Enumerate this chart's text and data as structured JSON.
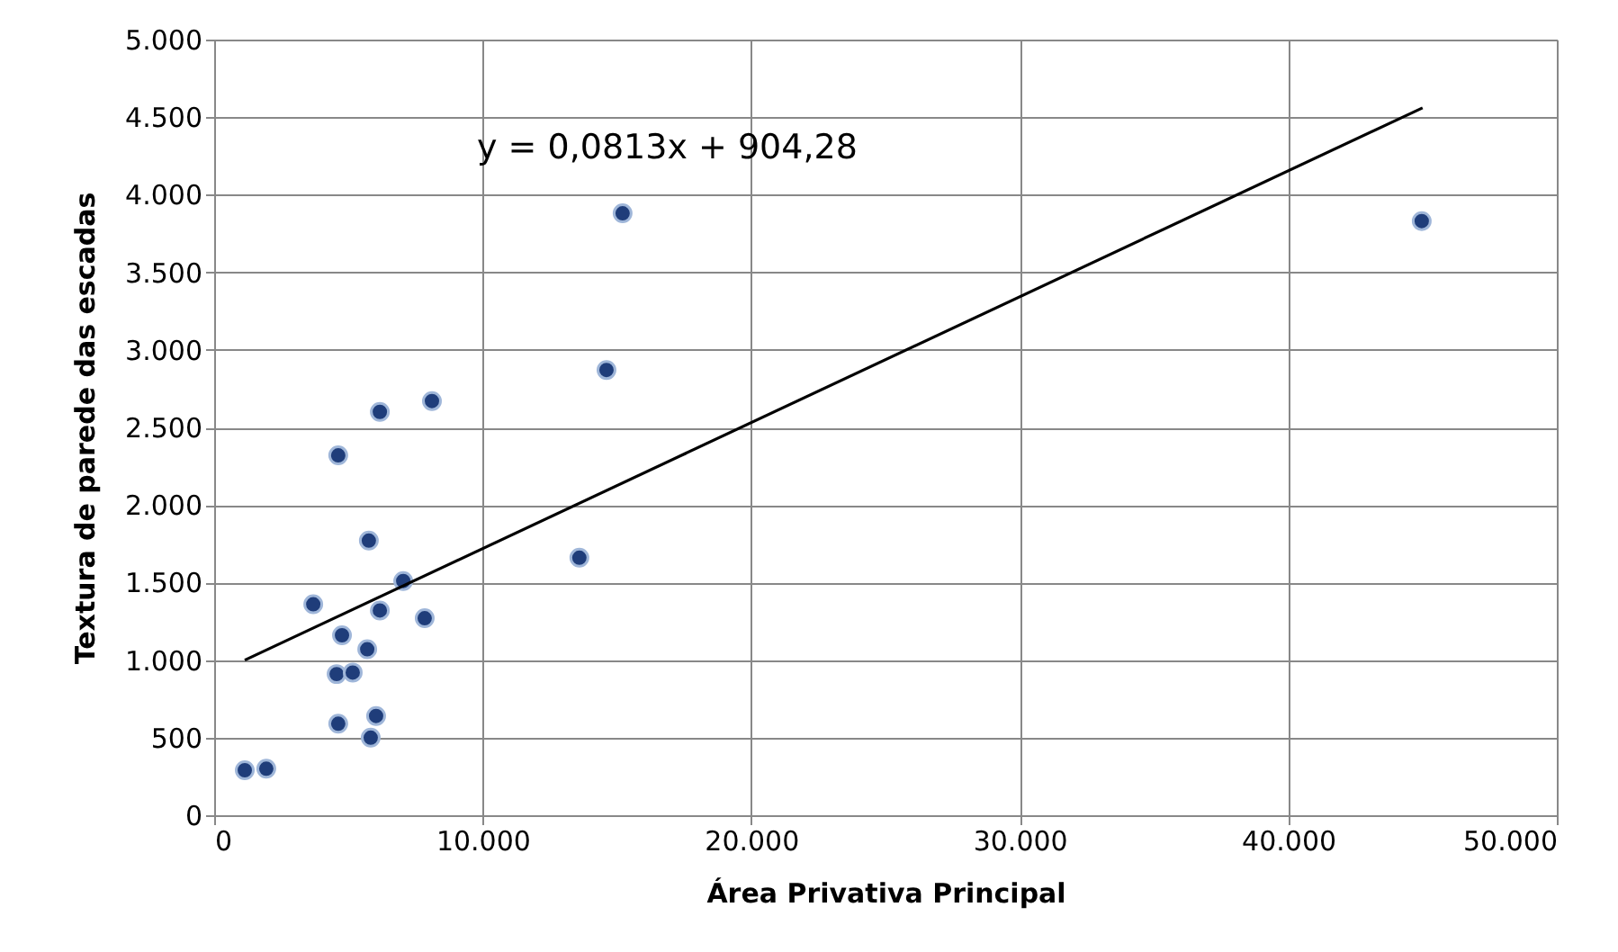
{
  "chart_data": {
    "type": "scatter",
    "xlabel": "Área Privativa Principal",
    "ylabel": "Textura de parede das escadas",
    "annotations": [
      "y = 0,0813x + 904,28"
    ],
    "series": [
      {
        "color": "#1f3d7a",
        "marker": "circle",
        "x": [
          1140,
          1940,
          3690,
          4620,
          4760,
          4560,
          4620,
          5160,
          5700,
          5760,
          5830,
          6030,
          6170,
          6170,
          7040,
          7840,
          8110,
          13600,
          14610,
          15210,
          44970
        ],
        "values": [
          290,
          300,
          1360,
          2320,
          1160,
          910,
          590,
          920,
          1070,
          1770,
          500,
          640,
          2600,
          1320,
          1510,
          1270,
          2670,
          1660,
          2870,
          3880,
          3830
        ]
      },
      {
        "type": "line",
        "color": "#000000",
        "marker": "none",
        "line_style": "solid",
        "x": [
          1140,
          45000
        ],
        "values": [
          1000,
          4560
        ]
      }
    ],
    "xlim": [
      0,
      50000
    ],
    "ylim": [
      0,
      5000
    ],
    "xticks": [
      0,
      {
        "value": 10000,
        "label": "10.000"
      },
      {
        "value": 20000,
        "label": "20.000"
      },
      {
        "value": 30000,
        "label": "30.000"
      },
      {
        "value": 40000,
        "label": "40.000"
      },
      {
        "value": 50000,
        "label": "50.000"
      }
    ],
    "yticks": [
      0,
      500,
      {
        "value": 1000,
        "label": "1.000"
      },
      {
        "value": 1500,
        "label": "1.500"
      },
      {
        "value": 2000,
        "label": "2.000"
      },
      {
        "value": 2500,
        "label": "2.500"
      },
      {
        "value": 3000,
        "label": "3.000"
      },
      {
        "value": 3500,
        "label": "3.500"
      },
      {
        "value": 4000,
        "label": "4.000"
      },
      {
        "value": 4500,
        "label": "4.500"
      },
      {
        "value": 5000,
        "label": "5.000"
      }
    ],
    "grid": true
  }
}
